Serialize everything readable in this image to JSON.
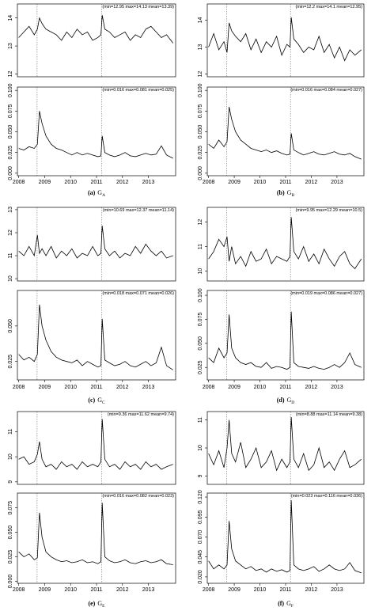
{
  "chart_data": [
    {
      "type": "line",
      "annotation": "(min=12.95  max=14.13  mean=13.39)",
      "x": [
        2008.0,
        2008.2,
        2008.4,
        2008.6,
        2008.72,
        2008.8,
        2008.9,
        2009.05,
        2009.25,
        2009.45,
        2009.65,
        2009.85,
        2010.05,
        2010.25,
        2010.45,
        2010.65,
        2010.85,
        2011.05,
        2011.17,
        2011.22,
        2011.32,
        2011.5,
        2011.7,
        2011.9,
        2012.1,
        2012.3,
        2012.5,
        2012.7,
        2012.9,
        2013.1,
        2013.3,
        2013.5,
        2013.7,
        2013.95
      ],
      "values": [
        13.3,
        13.5,
        13.7,
        13.4,
        13.6,
        14.0,
        13.8,
        13.6,
        13.5,
        13.4,
        13.2,
        13.5,
        13.3,
        13.6,
        13.4,
        13.5,
        13.2,
        13.3,
        13.4,
        14.1,
        13.6,
        13.5,
        13.3,
        13.4,
        13.5,
        13.2,
        13.4,
        13.3,
        13.6,
        13.7,
        13.5,
        13.3,
        13.4,
        13.1
      ],
      "color": "#000000",
      "xlim": [
        2007.95,
        2014.05
      ],
      "ylim": [
        11.9,
        14.5
      ],
      "yticks": [
        12,
        13,
        14
      ],
      "vlines": [
        2008.71,
        2011.19
      ]
    },
    {
      "type": "line",
      "annotation": "(min=0.016  max=0.081  mean=0.025)",
      "x": [
        2008.0,
        2008.2,
        2008.4,
        2008.6,
        2008.72,
        2008.8,
        2008.9,
        2009.05,
        2009.25,
        2009.45,
        2009.65,
        2009.85,
        2010.05,
        2010.25,
        2010.45,
        2010.65,
        2010.85,
        2011.05,
        2011.17,
        2011.22,
        2011.32,
        2011.5,
        2011.7,
        2011.9,
        2012.1,
        2012.3,
        2012.5,
        2012.7,
        2012.9,
        2013.1,
        2013.3,
        2013.5,
        2013.7,
        2013.95
      ],
      "values": [
        0.03,
        0.028,
        0.032,
        0.03,
        0.035,
        0.075,
        0.06,
        0.045,
        0.035,
        0.03,
        0.028,
        0.025,
        0.022,
        0.025,
        0.022,
        0.024,
        0.022,
        0.02,
        0.021,
        0.045,
        0.025,
        0.022,
        0.02,
        0.022,
        0.025,
        0.021,
        0.02,
        0.022,
        0.024,
        0.022,
        0.023,
        0.033,
        0.022,
        0.018
      ],
      "color": "#000000",
      "xlim": [
        2007.95,
        2014.05
      ],
      "ylim": [
        -0.003,
        0.104
      ],
      "yticks": [
        {
          "value": 0,
          "label": "0.000"
        },
        0.025,
        {
          "value": 0.05,
          "label": "0.050"
        },
        0.075,
        {
          "value": 0.1,
          "label": "0.100"
        }
      ],
      "xticks": [
        2008,
        2009,
        2010,
        2011,
        2012,
        2013
      ],
      "vlines": [
        2008.71,
        2011.19
      ]
    },
    {
      "type": "line",
      "annotation": "(min=12.2  max=14.1  mean=12.95)",
      "x": [
        2008.0,
        2008.2,
        2008.4,
        2008.6,
        2008.72,
        2008.8,
        2008.9,
        2009.05,
        2009.25,
        2009.45,
        2009.65,
        2009.85,
        2010.05,
        2010.25,
        2010.45,
        2010.65,
        2010.85,
        2011.05,
        2011.17,
        2011.22,
        2011.32,
        2011.5,
        2011.7,
        2011.9,
        2012.1,
        2012.3,
        2012.5,
        2012.7,
        2012.9,
        2013.1,
        2013.3,
        2013.5,
        2013.7,
        2013.95
      ],
      "values": [
        13.0,
        13.5,
        12.9,
        13.2,
        12.8,
        13.9,
        13.6,
        13.4,
        13.2,
        13.5,
        12.9,
        13.3,
        12.8,
        13.2,
        13.0,
        13.4,
        12.7,
        13.1,
        13.0,
        14.1,
        13.3,
        13.1,
        12.8,
        13.0,
        12.9,
        13.4,
        12.8,
        13.1,
        12.6,
        13.0,
        12.5,
        12.9,
        12.7,
        12.9
      ],
      "color": "#000000",
      "xlim": [
        2007.95,
        2014.05
      ],
      "ylim": [
        11.9,
        14.6
      ],
      "yticks": [
        12,
        13,
        14
      ],
      "vlines": [
        2008.71,
        2011.19
      ]
    },
    {
      "type": "line",
      "annotation": "(min=0.016  max=0.084  mean=0.027)",
      "x": [
        2008.0,
        2008.2,
        2008.4,
        2008.6,
        2008.72,
        2008.8,
        2008.9,
        2009.05,
        2009.25,
        2009.45,
        2009.65,
        2009.85,
        2010.05,
        2010.25,
        2010.45,
        2010.65,
        2010.85,
        2011.05,
        2011.17,
        2011.22,
        2011.32,
        2011.5,
        2011.7,
        2011.9,
        2012.1,
        2012.3,
        2012.5,
        2012.7,
        2012.9,
        2013.1,
        2013.3,
        2013.5,
        2013.7,
        2013.95
      ],
      "values": [
        0.035,
        0.03,
        0.04,
        0.032,
        0.038,
        0.08,
        0.065,
        0.05,
        0.04,
        0.035,
        0.03,
        0.028,
        0.026,
        0.028,
        0.025,
        0.027,
        0.024,
        0.022,
        0.023,
        0.048,
        0.028,
        0.025,
        0.022,
        0.024,
        0.026,
        0.023,
        0.022,
        0.024,
        0.026,
        0.023,
        0.022,
        0.024,
        0.02,
        0.017
      ],
      "color": "#000000",
      "xlim": [
        2007.95,
        2014.05
      ],
      "ylim": [
        -0.003,
        0.104
      ],
      "yticks": [
        {
          "value": 0,
          "label": "0.000"
        },
        0.025,
        {
          "value": 0.05,
          "label": "0.050"
        },
        0.075,
        {
          "value": 0.1,
          "label": "0.100"
        }
      ],
      "xticks": [
        2008,
        2009,
        2010,
        2011,
        2012,
        2013
      ],
      "vlines": [
        2008.71,
        2011.19
      ]
    },
    {
      "type": "line",
      "annotation": "(min=10.69  max=12.37  mean=11.14)",
      "x": [
        2008.0,
        2008.2,
        2008.4,
        2008.6,
        2008.72,
        2008.8,
        2008.9,
        2009.05,
        2009.25,
        2009.45,
        2009.65,
        2009.85,
        2010.05,
        2010.25,
        2010.45,
        2010.65,
        2010.85,
        2011.05,
        2011.17,
        2011.22,
        2011.32,
        2011.5,
        2011.7,
        2011.9,
        2012.1,
        2012.3,
        2012.5,
        2012.7,
        2012.9,
        2013.1,
        2013.3,
        2013.5,
        2013.7,
        2013.95
      ],
      "values": [
        11.2,
        11.0,
        11.4,
        11.0,
        11.9,
        11.1,
        11.3,
        11.0,
        11.4,
        10.9,
        11.2,
        11.0,
        11.3,
        10.9,
        11.1,
        11.0,
        11.4,
        11.0,
        11.1,
        12.3,
        11.3,
        11.0,
        11.2,
        10.9,
        11.1,
        11.0,
        11.4,
        11.1,
        11.5,
        11.2,
        11.0,
        11.2,
        10.9,
        11.0
      ],
      "color": "#000000",
      "xlim": [
        2007.95,
        2014.05
      ],
      "ylim": [
        9.9,
        13.1
      ],
      "yticks": [
        10,
        11,
        12,
        13
      ],
      "vlines": [
        2008.71,
        2011.19
      ]
    },
    {
      "type": "line",
      "annotation": "(min=0.018  max=0.071  mean=0.026)",
      "x": [
        2008.0,
        2008.2,
        2008.4,
        2008.6,
        2008.72,
        2008.8,
        2008.9,
        2009.05,
        2009.25,
        2009.45,
        2009.65,
        2009.85,
        2010.05,
        2010.25,
        2010.45,
        2010.65,
        2010.85,
        2011.05,
        2011.17,
        2011.22,
        2011.32,
        2011.5,
        2011.7,
        2011.9,
        2012.1,
        2012.3,
        2012.5,
        2012.7,
        2012.9,
        2013.1,
        2013.3,
        2013.5,
        2013.7,
        2013.95
      ],
      "values": [
        0.03,
        0.026,
        0.028,
        0.025,
        0.03,
        0.065,
        0.05,
        0.04,
        0.032,
        0.028,
        0.026,
        0.025,
        0.024,
        0.026,
        0.022,
        0.025,
        0.023,
        0.021,
        0.022,
        0.055,
        0.026,
        0.024,
        0.022,
        0.023,
        0.025,
        0.022,
        0.021,
        0.023,
        0.025,
        0.022,
        0.024,
        0.035,
        0.022,
        0.019
      ],
      "color": "#000000",
      "xlim": [
        2007.95,
        2014.05
      ],
      "ylim": [
        0.012,
        0.075
      ],
      "yticks": [
        0.025,
        {
          "value": 0.05,
          "label": "0.050"
        }
      ],
      "xticks": [
        2008,
        2009,
        2010,
        2011,
        2012,
        2013
      ],
      "vlines": [
        2008.71,
        2011.19
      ]
    },
    {
      "type": "line",
      "annotation": "(min=9.95  max=12.29  mean=10.5)",
      "x": [
        2008.0,
        2008.2,
        2008.4,
        2008.6,
        2008.72,
        2008.8,
        2008.9,
        2009.05,
        2009.25,
        2009.45,
        2009.65,
        2009.85,
        2010.05,
        2010.25,
        2010.45,
        2010.65,
        2010.85,
        2011.05,
        2011.17,
        2011.22,
        2011.32,
        2011.5,
        2011.7,
        2011.9,
        2012.1,
        2012.3,
        2012.5,
        2012.7,
        2012.9,
        2013.1,
        2013.3,
        2013.5,
        2013.7,
        2013.95
      ],
      "values": [
        10.5,
        10.8,
        11.3,
        11.0,
        11.4,
        10.4,
        11.0,
        10.3,
        10.6,
        10.2,
        10.8,
        10.4,
        10.5,
        10.9,
        10.3,
        10.6,
        10.5,
        10.4,
        10.6,
        12.2,
        10.8,
        10.5,
        11.0,
        10.4,
        10.7,
        10.3,
        10.9,
        10.5,
        10.2,
        10.6,
        10.8,
        10.3,
        10.1,
        10.5
      ],
      "color": "#000000",
      "xlim": [
        2007.95,
        2014.05
      ],
      "ylim": [
        9.6,
        12.6
      ],
      "yticks": [
        10,
        11,
        12
      ],
      "vlines": [
        2008.71,
        2011.19
      ]
    },
    {
      "type": "line",
      "annotation": "(min=0.019  max=0.086  mean=0.027)",
      "x": [
        2008.0,
        2008.2,
        2008.4,
        2008.6,
        2008.72,
        2008.8,
        2008.9,
        2009.05,
        2009.25,
        2009.45,
        2009.65,
        2009.85,
        2010.05,
        2010.25,
        2010.45,
        2010.65,
        2010.85,
        2011.05,
        2011.17,
        2011.22,
        2011.32,
        2011.5,
        2011.7,
        2011.9,
        2012.1,
        2012.3,
        2012.5,
        2012.7,
        2012.9,
        2013.1,
        2013.3,
        2013.5,
        2013.7,
        2013.95
      ],
      "values": [
        0.035,
        0.03,
        0.045,
        0.035,
        0.04,
        0.08,
        0.045,
        0.035,
        0.03,
        0.028,
        0.03,
        0.026,
        0.025,
        0.03,
        0.024,
        0.026,
        0.025,
        0.023,
        0.025,
        0.083,
        0.03,
        0.026,
        0.025,
        0.024,
        0.026,
        0.024,
        0.023,
        0.025,
        0.028,
        0.025,
        0.03,
        0.04,
        0.028,
        0.025
      ],
      "color": "#000000",
      "xlim": [
        2007.95,
        2014.05
      ],
      "ylim": [
        0.012,
        0.105
      ],
      "yticks": [
        0.025,
        {
          "value": 0.05,
          "label": "0.050"
        },
        0.075,
        {
          "value": 0.1,
          "label": "0.100"
        }
      ],
      "xticks": [
        2008,
        2009,
        2010,
        2011,
        2012,
        2013
      ],
      "vlines": [
        2008.71,
        2011.19
      ]
    },
    {
      "type": "line",
      "annotation": "(min=9.36  max=11.62  mean=9.74)",
      "x": [
        2008.0,
        2008.2,
        2008.4,
        2008.6,
        2008.72,
        2008.8,
        2008.9,
        2009.05,
        2009.25,
        2009.45,
        2009.65,
        2009.85,
        2010.05,
        2010.25,
        2010.45,
        2010.65,
        2010.85,
        2011.05,
        2011.17,
        2011.22,
        2011.32,
        2011.5,
        2011.7,
        2011.9,
        2012.1,
        2012.3,
        2012.5,
        2012.7,
        2012.9,
        2013.1,
        2013.3,
        2013.5,
        2013.7,
        2013.95
      ],
      "values": [
        9.9,
        10.0,
        9.7,
        9.8,
        10.1,
        10.6,
        9.9,
        9.6,
        9.7,
        9.5,
        9.8,
        9.6,
        9.7,
        9.5,
        9.8,
        9.6,
        9.7,
        9.6,
        9.8,
        11.5,
        9.9,
        9.6,
        9.7,
        9.5,
        9.8,
        9.6,
        9.7,
        9.5,
        9.8,
        9.6,
        9.7,
        9.5,
        9.6,
        9.7
      ],
      "color": "#000000",
      "xlim": [
        2007.95,
        2014.05
      ],
      "ylim": [
        8.9,
        11.8
      ],
      "yticks": [
        9,
        10,
        11
      ],
      "vlines": [
        2008.71,
        2011.19
      ]
    },
    {
      "type": "line",
      "annotation": "(min=0.016  max=0.082  mean=0.023)",
      "x": [
        2008.0,
        2008.2,
        2008.4,
        2008.6,
        2008.72,
        2008.8,
        2008.9,
        2009.05,
        2009.25,
        2009.45,
        2009.65,
        2009.85,
        2010.05,
        2010.25,
        2010.45,
        2010.65,
        2010.85,
        2011.05,
        2011.17,
        2011.22,
        2011.32,
        2011.5,
        2011.7,
        2011.9,
        2012.1,
        2012.3,
        2012.5,
        2012.7,
        2012.9,
        2013.1,
        2013.3,
        2013.5,
        2013.7,
        2013.95
      ],
      "values": [
        0.03,
        0.025,
        0.028,
        0.022,
        0.024,
        0.07,
        0.045,
        0.03,
        0.025,
        0.022,
        0.02,
        0.021,
        0.019,
        0.02,
        0.022,
        0.019,
        0.02,
        0.018,
        0.02,
        0.08,
        0.025,
        0.021,
        0.019,
        0.02,
        0.022,
        0.019,
        0.018,
        0.02,
        0.021,
        0.019,
        0.02,
        0.022,
        0.018,
        0.017
      ],
      "color": "#000000",
      "xlim": [
        2007.95,
        2014.05
      ],
      "ylim": [
        -0.002,
        0.09
      ],
      "yticks": [
        {
          "value": 0,
          "label": "0.000"
        },
        0.025,
        {
          "value": 0.05,
          "label": "0.050"
        },
        0.075
      ],
      "xticks": [
        2008,
        2009,
        2010,
        2011,
        2012,
        2013
      ],
      "vlines": [
        2008.71,
        2011.19
      ]
    },
    {
      "type": "line",
      "annotation": "(min=8.88  max=11.14  mean=9.38)",
      "x": [
        2008.0,
        2008.2,
        2008.4,
        2008.6,
        2008.72,
        2008.8,
        2008.9,
        2009.05,
        2009.25,
        2009.45,
        2009.65,
        2009.85,
        2010.05,
        2010.25,
        2010.45,
        2010.65,
        2010.85,
        2011.05,
        2011.17,
        2011.22,
        2011.32,
        2011.5,
        2011.7,
        2011.9,
        2012.1,
        2012.3,
        2012.5,
        2012.7,
        2012.9,
        2013.1,
        2013.3,
        2013.5,
        2013.7,
        2013.95
      ],
      "values": [
        9.8,
        9.4,
        9.9,
        9.3,
        10.0,
        11.0,
        9.8,
        9.5,
        10.2,
        9.3,
        9.6,
        10.0,
        9.3,
        9.5,
        9.9,
        9.2,
        9.6,
        9.3,
        9.5,
        11.1,
        9.6,
        9.3,
        9.8,
        9.2,
        9.4,
        10.0,
        9.3,
        9.5,
        9.2,
        9.6,
        9.9,
        9.3,
        9.4,
        9.6
      ],
      "color": "#000000",
      "xlim": [
        2007.95,
        2014.05
      ],
      "ylim": [
        8.7,
        11.3
      ],
      "yticks": [
        9,
        10,
        11
      ],
      "vlines": [
        2008.71,
        2011.19
      ]
    },
    {
      "type": "line",
      "annotation": "(min=0.023  max=0.116  mean=0.036)",
      "x": [
        2008.0,
        2008.2,
        2008.4,
        2008.6,
        2008.72,
        2008.8,
        2008.9,
        2009.05,
        2009.25,
        2009.45,
        2009.65,
        2009.85,
        2010.05,
        2010.25,
        2010.45,
        2010.65,
        2010.85,
        2011.05,
        2011.17,
        2011.22,
        2011.32,
        2011.5,
        2011.7,
        2011.9,
        2012.1,
        2012.3,
        2012.5,
        2012.7,
        2012.9,
        2013.1,
        2013.3,
        2013.5,
        2013.7,
        2013.95
      ],
      "values": [
        0.04,
        0.03,
        0.035,
        0.03,
        0.035,
        0.09,
        0.055,
        0.04,
        0.035,
        0.03,
        0.033,
        0.028,
        0.03,
        0.026,
        0.03,
        0.027,
        0.029,
        0.026,
        0.028,
        0.116,
        0.035,
        0.03,
        0.028,
        0.03,
        0.033,
        0.027,
        0.03,
        0.035,
        0.03,
        0.028,
        0.03,
        0.038,
        0.028,
        0.025
      ],
      "color": "#000000",
      "xlim": [
        2007.95,
        2014.05
      ],
      "ylim": [
        0.012,
        0.125
      ],
      "yticks": [
        {
          "value": 0.02,
          "label": "0.020"
        },
        0.045,
        {
          "value": 0.07,
          "label": "0.070"
        },
        0.095,
        {
          "value": 0.12,
          "label": "0.120"
        }
      ],
      "xticks": [
        2008,
        2009,
        2010,
        2011,
        2012,
        2013
      ],
      "vlines": [
        2008.71,
        2011.19
      ]
    }
  ],
  "captions": [
    {
      "label": "(a)",
      "var": "G",
      "sub": "A"
    },
    {
      "label": "(b)",
      "var": "G",
      "sub": "B"
    },
    {
      "label": "(c)",
      "var": "G",
      "sub": "C"
    },
    {
      "label": "(d)",
      "var": "G",
      "sub": "D"
    },
    {
      "label": "(e)",
      "var": "G",
      "sub": "E"
    },
    {
      "label": "(f)",
      "var": "G",
      "sub": "F"
    }
  ]
}
